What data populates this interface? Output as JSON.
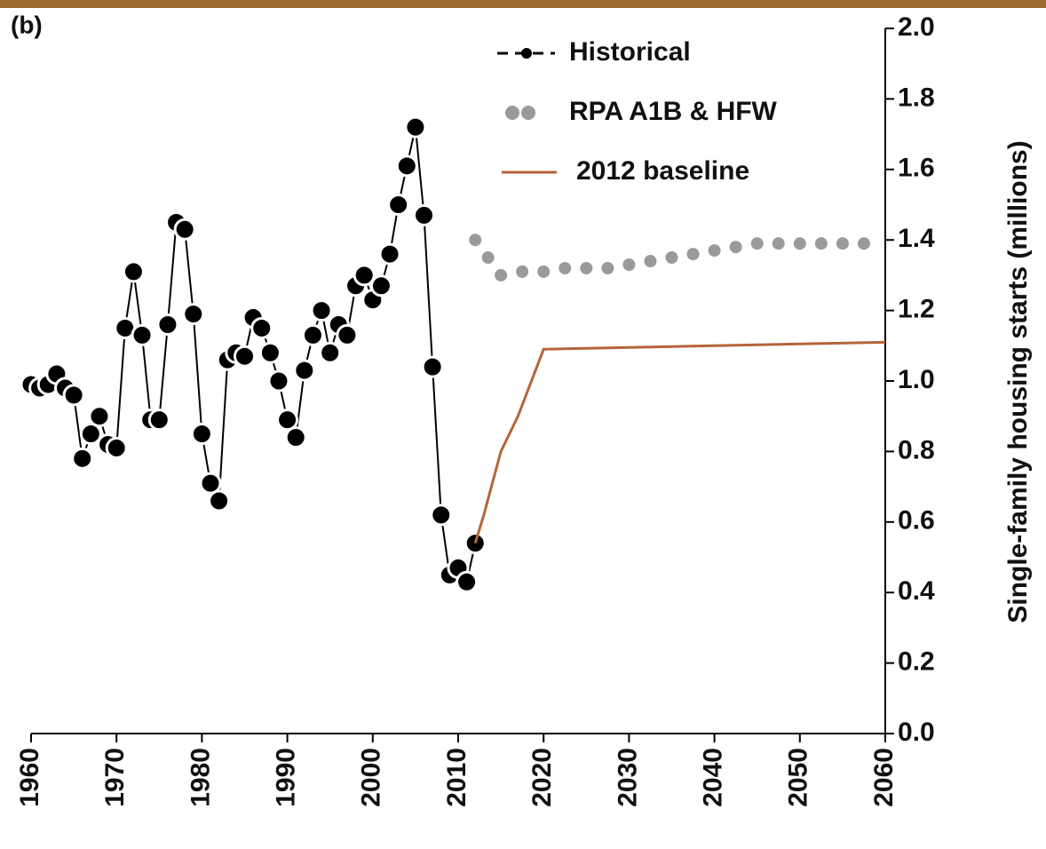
{
  "chart_data": {
    "type": "line",
    "panel_label": "(b)",
    "y_label": "Single-family housing starts (millions)",
    "xlim": [
      1960,
      2060
    ],
    "xticks": [
      1960,
      1970,
      1980,
      1990,
      2000,
      2010,
      2020,
      2030,
      2040,
      2050,
      2060
    ],
    "ylim": [
      0,
      2
    ],
    "yticks": [
      {
        "value": 0,
        "label": "0.0"
      },
      {
        "value": 0.2,
        "label": "0.2"
      },
      {
        "value": 0.4,
        "label": "0.4"
      },
      {
        "value": 0.6,
        "label": "0.6"
      },
      {
        "value": 0.8,
        "label": "0.8"
      },
      {
        "value": 1,
        "label": "1.0"
      },
      {
        "value": 1.2,
        "label": "1.2"
      },
      {
        "value": 1.4,
        "label": "1.4"
      },
      {
        "value": 1.6,
        "label": "1.6"
      },
      {
        "value": 1.8,
        "label": "1.8"
      },
      {
        "value": 2,
        "label": "2.0"
      }
    ],
    "series": [
      {
        "name": "Historical",
        "color": "#000000",
        "style": "markers",
        "x": [
          1960,
          1961,
          1962,
          1963,
          1964,
          1965,
          1966,
          1967,
          1968,
          1969,
          1970,
          1971,
          1972,
          1973,
          1974,
          1975,
          1976,
          1977,
          1978,
          1979,
          1980,
          1981,
          1982,
          1983,
          1984,
          1985,
          1986,
          1987,
          1988,
          1989,
          1990,
          1991,
          1992,
          1993,
          1994,
          1995,
          1996,
          1997,
          1998,
          1999,
          2000,
          2001,
          2002,
          2003,
          2004,
          2005,
          2006,
          2007,
          2008,
          2009,
          2010,
          2011,
          2012
        ],
        "values": [
          0.99,
          0.98,
          0.99,
          1.02,
          0.98,
          0.96,
          0.78,
          0.85,
          0.9,
          0.82,
          0.81,
          1.15,
          1.31,
          1.13,
          0.89,
          0.89,
          1.16,
          1.45,
          1.43,
          1.19,
          0.85,
          0.71,
          0.66,
          1.06,
          1.08,
          1.07,
          1.18,
          1.15,
          1.08,
          1.0,
          0.89,
          0.84,
          1.03,
          1.13,
          1.2,
          1.08,
          1.16,
          1.13,
          1.27,
          1.3,
          1.23,
          1.27,
          1.36,
          1.5,
          1.61,
          1.72,
          1.47,
          1.04,
          0.62,
          0.45,
          0.47,
          0.43,
          0.54
        ]
      },
      {
        "name": "RPA A1B & HFW",
        "color": "#9a9a9a",
        "style": "dots",
        "x": [
          2012,
          2013.5,
          2015,
          2017.5,
          2020,
          2022.5,
          2025,
          2027.5,
          2030,
          2032.5,
          2035,
          2037.5,
          2040,
          2042.5,
          2045,
          2047.5,
          2050,
          2052.5,
          2055,
          2057.5
        ],
        "values": [
          1.4,
          1.35,
          1.3,
          1.31,
          1.31,
          1.32,
          1.32,
          1.32,
          1.33,
          1.34,
          1.35,
          1.36,
          1.37,
          1.38,
          1.39,
          1.39,
          1.39,
          1.39,
          1.39,
          1.39
        ]
      },
      {
        "name": "2012 baseline",
        "color": "#b5653a",
        "style": "line",
        "x": [
          2012,
          2013,
          2015,
          2017,
          2020,
          2060
        ],
        "values": [
          0.54,
          0.62,
          0.8,
          0.9,
          1.09,
          1.11
        ]
      }
    ]
  }
}
